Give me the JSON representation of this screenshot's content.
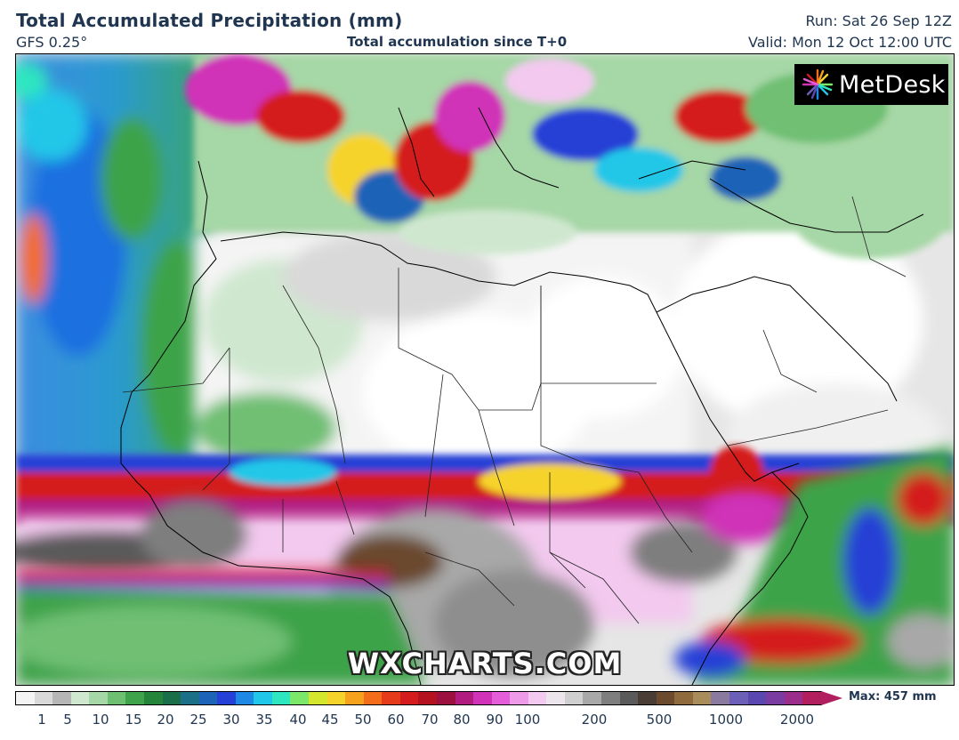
{
  "header": {
    "title": "Total Accumulated Precipitation (mm)",
    "model": "GFS 0.25°",
    "subtitle": "Total accumulation since T+0",
    "run": "Run: Sat 26 Sep 12Z",
    "valid": "Valid: Mon 12 Oct 12:00 UTC"
  },
  "logo": {
    "text": "MetDesk"
  },
  "watermark": "WXCHARTS.COM",
  "colorbar": {
    "max_label": "Max: 457 mm",
    "ticks": [
      "1",
      "5",
      "10",
      "15",
      "20",
      "25",
      "30",
      "35",
      "40",
      "45",
      "50",
      "60",
      "70",
      "80",
      "90",
      "100",
      "200",
      "500",
      "1000",
      "2000"
    ],
    "colors": [
      "#f4f4f4",
      "#d9d9d9",
      "#b6b6b6",
      "#cfe7cf",
      "#a6d7a6",
      "#6fbf73",
      "#3ea34a",
      "#24843a",
      "#1b6e4a",
      "#1b6f86",
      "#1d63b8",
      "#2540d6",
      "#1e88e5",
      "#20c7e8",
      "#2ee6c0",
      "#7be86a",
      "#d4e62e",
      "#f6d32a",
      "#f7a21d",
      "#f46d1a",
      "#e53b1a",
      "#d41c1c",
      "#b4121e",
      "#9c1040",
      "#b01c80",
      "#d032b8",
      "#e35ed8",
      "#ee9ae8",
      "#f3c9ef",
      "#ece6ec",
      "#cfcfcf",
      "#a8a8a8",
      "#7e7e7e",
      "#5a5a5a",
      "#4a3d36",
      "#6b4a2e",
      "#8e6a3c",
      "#a88c5a",
      "#8a7aa0",
      "#6b5fb8",
      "#5a48b0",
      "#7a3ca0",
      "#9a2e8a",
      "#b21f5e"
    ]
  },
  "map": {
    "colors": {
      "ocean_low": "#2a7de0",
      "ocean_mid": "#3aa0d8",
      "green": "#3ea34a",
      "light_green": "#a6d7a6",
      "dry": "#ffffff",
      "grey": "#bdbdbd",
      "dark": "#6b4a2e",
      "red": "#d41c1c",
      "magenta": "#d032b8",
      "pink": "#f3c9ef",
      "blue": "#2540d6",
      "yellow": "#f6d32a"
    }
  }
}
